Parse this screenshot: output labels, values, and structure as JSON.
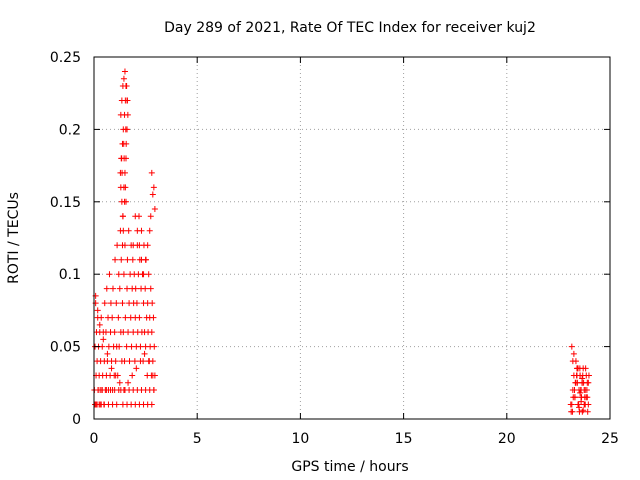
{
  "chart_data": {
    "type": "scatter",
    "title": "Day 289 of 2021, Rate Of TEC Index for receiver kuj2",
    "xlabel": "GPS time / hours",
    "ylabel": "ROTI / TECUs",
    "xlim": [
      0,
      25
    ],
    "ylim": [
      0,
      0.25
    ],
    "xticks": [
      0,
      5,
      10,
      15,
      20,
      25
    ],
    "xtick_labels": [
      "0",
      "5",
      "10",
      "15",
      "20",
      "25"
    ],
    "yticks": [
      0,
      0.05,
      0.1,
      0.15,
      0.2,
      0.25
    ],
    "ytick_labels": [
      "0",
      "0.05",
      "0.1",
      "0.15",
      "0.2",
      "0.25"
    ],
    "grid": true,
    "marker": "+",
    "color": "#ff0000",
    "series": [
      {
        "x": [
          0.02,
          0.05,
          0.08,
          0.1,
          0.12,
          0.15,
          0.18,
          0.2,
          0.22,
          0.25,
          0.28,
          0.3,
          0.32,
          0.35,
          0.38,
          0.4,
          0.42,
          0.45,
          0.48,
          0.5,
          0.52,
          0.55,
          0.58,
          0.6,
          0.62,
          0.65,
          0.68,
          0.7,
          0.72,
          0.75,
          0.78,
          0.8,
          0.82,
          0.85,
          0.88,
          0.9,
          0.92,
          0.95,
          0.98,
          1.0,
          1.02,
          1.05,
          1.08,
          1.1,
          1.12,
          1.15,
          1.18,
          1.2,
          1.22,
          1.25,
          1.28,
          1.3,
          1.32,
          1.35,
          1.38,
          1.4,
          1.42,
          1.45,
          1.48,
          1.5,
          1.52,
          1.55,
          1.58,
          1.6,
          1.62,
          1.65,
          1.68,
          1.7,
          1.72,
          1.75,
          1.78,
          1.8,
          1.82,
          1.85,
          1.88,
          1.9,
          1.92,
          1.95,
          1.98,
          2.0,
          2.02,
          2.05,
          2.08,
          2.1,
          2.12,
          2.15,
          2.18,
          2.2,
          2.22,
          2.25,
          2.28,
          2.3,
          2.32,
          2.35,
          2.38,
          2.4,
          2.42,
          2.45,
          2.48,
          2.5,
          2.52,
          2.55,
          2.58,
          2.6,
          2.62,
          2.65,
          2.68,
          2.7,
          2.72,
          2.75,
          2.78,
          2.8,
          2.82,
          2.85,
          2.88,
          2.9,
          2.92,
          2.95,
          0.05,
          0.1,
          0.15,
          0.2,
          0.25,
          0.3,
          0.35,
          0.4,
          0.5,
          0.6,
          0.7,
          0.8,
          0.9,
          1.0,
          1.1,
          1.2,
          1.3,
          1.4,
          1.5,
          1.6,
          1.7,
          1.8,
          1.9,
          2.0,
          2.1,
          2.2,
          2.3,
          2.4,
          2.5,
          2.6,
          2.7,
          2.8,
          2.9,
          0.08,
          0.18,
          0.28,
          0.45,
          0.65,
          0.85,
          1.05,
          1.25,
          1.45,
          1.65,
          1.85,
          2.05,
          2.25,
          2.45,
          2.65,
          2.85,
          1.3,
          1.35,
          1.4,
          1.45,
          1.5,
          1.55,
          1.6,
          1.32,
          1.38,
          1.42,
          1.48,
          1.52,
          1.58,
          1.62,
          1.28,
          1.34,
          1.44,
          1.54,
          1.64,
          1.3,
          1.36,
          1.46,
          1.56,
          1.6,
          1.35,
          1.45,
          1.5,
          1.55,
          1.4,
          1.48,
          1.52,
          1.38,
          1.42,
          2.8,
          2.9,
          2.85,
          2.95,
          2.75,
          2.7,
          2.6,
          2.5,
          2.4,
          2.3,
          2.2,
          2.1,
          2.0,
          1.9,
          23.1,
          23.2,
          23.25,
          23.3,
          23.35,
          23.4,
          23.45,
          23.5,
          23.55,
          23.6,
          23.65,
          23.7,
          23.75,
          23.8,
          23.85,
          23.9,
          23.95,
          23.12,
          23.22,
          23.32,
          23.42,
          23.52,
          23.62,
          23.72,
          23.82,
          23.92,
          23.15,
          23.28,
          23.38,
          23.48,
          23.58,
          23.68,
          23.78,
          23.88,
          23.98,
          23.18,
          23.3,
          23.42,
          23.54,
          23.66,
          23.78,
          23.9,
          23.2,
          23.4,
          23.6,
          23.8,
          23.25,
          23.45,
          23.65,
          23.85,
          23.15,
          23.35,
          23.55,
          23.75,
          23.95,
          23.5,
          23.6,
          23.7,
          23.55,
          23.65
        ],
        "y": [
          0.02,
          0.05,
          0.08,
          0.03,
          0.06,
          0.04,
          0.07,
          0.02,
          0.05,
          0.03,
          0.06,
          0.01,
          0.04,
          0.07,
          0.02,
          0.05,
          0.03,
          0.06,
          0.01,
          0.04,
          0.08,
          0.02,
          0.06,
          0.03,
          0.09,
          0.04,
          0.07,
          0.02,
          0.05,
          0.1,
          0.03,
          0.06,
          0.08,
          0.04,
          0.07,
          0.02,
          0.09,
          0.05,
          0.03,
          0.06,
          0.11,
          0.04,
          0.08,
          0.05,
          0.12,
          0.03,
          0.07,
          0.1,
          0.05,
          0.09,
          0.13,
          0.06,
          0.11,
          0.04,
          0.08,
          0.14,
          0.06,
          0.1,
          0.04,
          0.12,
          0.07,
          0.15,
          0.05,
          0.09,
          0.11,
          0.06,
          0.13,
          0.08,
          0.04,
          0.1,
          0.07,
          0.12,
          0.05,
          0.09,
          0.11,
          0.06,
          0.08,
          0.1,
          0.04,
          0.07,
          0.09,
          0.05,
          0.08,
          0.12,
          0.06,
          0.1,
          0.14,
          0.07,
          0.11,
          0.05,
          0.09,
          0.13,
          0.06,
          0.1,
          0.04,
          0.08,
          0.12,
          0.06,
          0.09,
          0.05,
          0.11,
          0.07,
          0.03,
          0.08,
          0.06,
          0.1,
          0.04,
          0.07,
          0.05,
          0.09,
          0.03,
          0.06,
          0.08,
          0.04,
          0.07,
          0.02,
          0.05,
          0.03,
          0.01,
          0.01,
          0.01,
          0.02,
          0.01,
          0.02,
          0.01,
          0.02,
          0.01,
          0.02,
          0.01,
          0.02,
          0.01,
          0.02,
          0.01,
          0.02,
          0.02,
          0.01,
          0.02,
          0.01,
          0.02,
          0.01,
          0.02,
          0.01,
          0.02,
          0.01,
          0.02,
          0.01,
          0.02,
          0.01,
          0.02,
          0.01,
          0.02,
          0.085,
          0.075,
          0.065,
          0.055,
          0.045,
          0.035,
          0.03,
          0.025,
          0.02,
          0.025,
          0.03,
          0.035,
          0.04,
          0.045,
          0.04,
          0.03,
          0.21,
          0.22,
          0.23,
          0.235,
          0.24,
          0.23,
          0.22,
          0.18,
          0.19,
          0.2,
          0.21,
          0.22,
          0.23,
          0.22,
          0.17,
          0.18,
          0.19,
          0.2,
          0.21,
          0.16,
          0.17,
          0.18,
          0.19,
          0.2,
          0.15,
          0.16,
          0.17,
          0.18,
          0.14,
          0.15,
          0.16,
          0.12,
          0.13,
          0.17,
          0.16,
          0.155,
          0.145,
          0.14,
          0.13,
          0.12,
          0.11,
          0.1,
          0.11,
          0.12,
          0.13,
          0.14,
          0.12,
          0.01,
          0.02,
          0.03,
          0.015,
          0.025,
          0.035,
          0.01,
          0.02,
          0.03,
          0.015,
          0.025,
          0.035,
          0.01,
          0.02,
          0.03,
          0.015,
          0.025,
          0.005,
          0.015,
          0.025,
          0.035,
          0.005,
          0.015,
          0.025,
          0.035,
          0.005,
          0.01,
          0.02,
          0.03,
          0.01,
          0.02,
          0.03,
          0.01,
          0.02,
          0.03,
          0.005,
          0.015,
          0.025,
          0.035,
          0.005,
          0.015,
          0.025,
          0.04,
          0.03,
          0.02,
          0.01,
          0.045,
          0.035,
          0.025,
          0.015,
          0.05,
          0.04,
          0.03,
          0.02,
          0.01,
          0.008,
          0.012,
          0.006,
          0.018,
          0.028
        ]
      }
    ]
  }
}
